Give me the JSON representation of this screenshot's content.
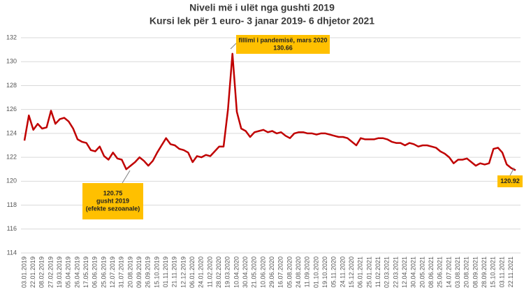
{
  "chart_data": {
    "type": "line",
    "title": "Niveli më i ulët nga gushti 2019",
    "subtitle": "Kursi lek për 1 euro- 3 janar 2019- 6 dhjetor 2021",
    "categories": [
      "03.01.2019",
      null,
      "22.01.2019",
      null,
      "08.02.2019",
      null,
      "27.02.2019",
      null,
      "19.03.2019",
      null,
      "05.04.2019",
      null,
      "26.04.2019",
      null,
      "17.05.2019",
      null,
      "06.06.2019",
      null,
      "25.06.2019",
      null,
      "12.07.2019",
      null,
      "31.07.2019",
      null,
      "20.08.2019",
      null,
      "09.09.2019",
      null,
      "26.09.2019",
      null,
      "15.10.2019",
      null,
      "01.11.2019",
      null,
      "21.11.2019",
      null,
      "12.12.2019",
      null,
      "06.01.2020",
      null,
      "24.01.2020",
      null,
      "11.02.2020",
      null,
      "28.02.2020",
      null,
      "19.03.2020",
      null,
      "10.04.2020",
      null,
      "30.04.2020",
      null,
      "21.05.2020",
      null,
      "10.06.2020",
      null,
      "29.06.2020",
      null,
      "16.07.2020",
      null,
      "05.08.2020",
      null,
      "24.08.2020",
      null,
      "11.09.2020",
      null,
      "01.10.2020",
      null,
      "19.10.2020",
      null,
      "05.11.2020",
      null,
      "24.11.2020",
      null,
      "15.12.2020",
      null,
      "06.01.2021",
      null,
      "25.01.2021",
      null,
      "11.02.2021",
      null,
      "02.03.2021",
      null,
      "22.03.2021",
      null,
      "12.04.2021",
      null,
      "30.04.2021",
      null,
      "20.05.2021",
      null,
      "08.06.2021",
      null,
      "25.06.2021",
      null,
      "14.07.2021",
      null,
      "03.08.2021",
      null,
      "20.08.2021",
      null,
      "08.09.2021",
      null,
      "28.09.2021",
      null,
      "15.10.2021",
      null,
      "03.11.2021",
      null,
      "22.11.2021",
      null
    ],
    "values": [
      123.4,
      125.5,
      124.3,
      124.8,
      124.4,
      124.5,
      125.9,
      124.8,
      125.2,
      125.3,
      125.0,
      124.4,
      123.5,
      123.3,
      123.2,
      122.6,
      122.5,
      122.9,
      122.1,
      121.8,
      122.4,
      121.9,
      121.8,
      121.0,
      121.3,
      121.6,
      122.0,
      121.7,
      121.3,
      121.7,
      122.4,
      123.0,
      123.6,
      123.1,
      123.0,
      122.7,
      122.6,
      122.4,
      121.6,
      122.1,
      122.0,
      122.2,
      122.1,
      122.5,
      122.9,
      122.9,
      126.0,
      130.66,
      125.8,
      124.4,
      124.2,
      123.7,
      124.1,
      124.2,
      124.3,
      124.1,
      124.2,
      124.0,
      124.1,
      123.8,
      123.6,
      124.0,
      124.1,
      124.1,
      124.0,
      124.0,
      123.9,
      124.0,
      124.0,
      123.9,
      123.8,
      123.7,
      123.7,
      123.6,
      123.3,
      123.0,
      123.6,
      123.5,
      123.5,
      123.5,
      123.6,
      123.6,
      123.5,
      123.3,
      123.2,
      123.2,
      123.0,
      123.2,
      123.1,
      122.9,
      123.0,
      123.0,
      122.9,
      122.8,
      122.5,
      122.3,
      122.0,
      121.5,
      121.8,
      121.8,
      121.9,
      121.6,
      121.3,
      121.5,
      121.4,
      121.5,
      122.7,
      122.8,
      122.4,
      121.4,
      121.1,
      120.92
    ],
    "color": "#c00000",
    "ylim": [
      114,
      132
    ],
    "yticks": [
      114,
      116,
      118,
      120,
      122,
      124,
      126,
      128,
      130,
      132
    ],
    "grid": true,
    "annotations": [
      {
        "lines": [
          "120.75",
          "gusht 2019",
          "(efekte sezoanale)"
        ]
      },
      {
        "lines": [
          "fillimi i pandemisë, mars 2020",
          "130.66"
        ]
      },
      {
        "lines": [
          "120.92"
        ]
      }
    ]
  }
}
